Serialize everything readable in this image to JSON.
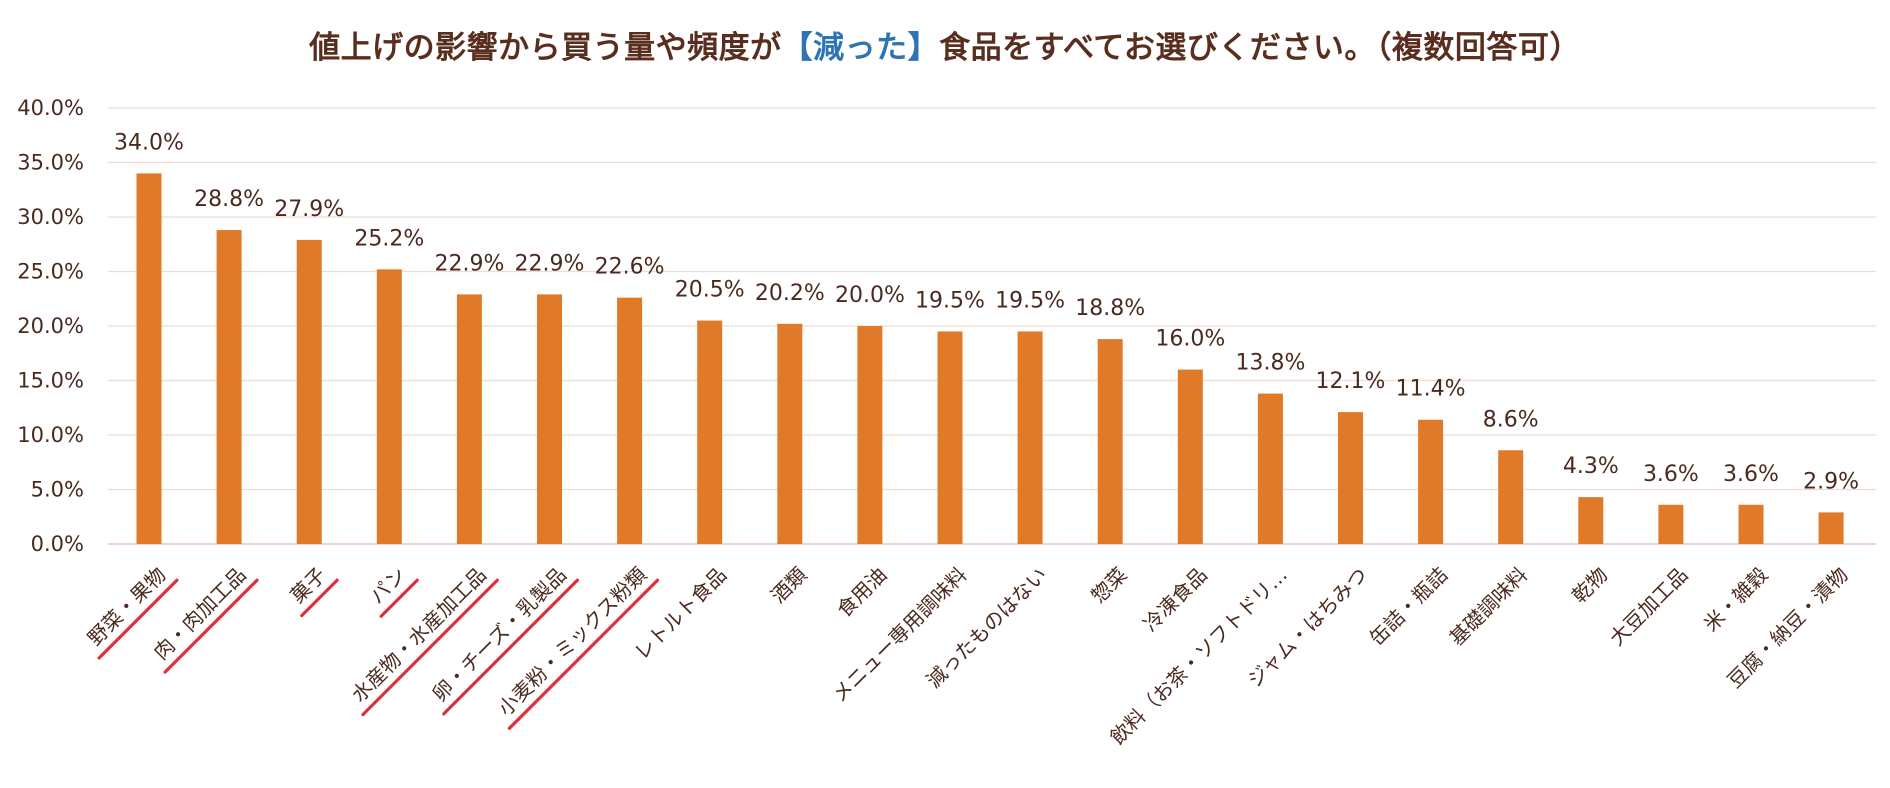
{
  "chart_data": {
    "type": "bar",
    "title": {
      "before": "値上げの影響から買う量や頻度が",
      "highlight": "【減った】",
      "after": "食品をすべてお選びください。（複数回答可）"
    },
    "xlabel": "",
    "ylabel": "",
    "ylim": [
      0,
      40
    ],
    "ytick_step": 5,
    "yticks": [
      "0.0%",
      "5.0%",
      "10.0%",
      "15.0%",
      "20.0%",
      "25.0%",
      "30.0%",
      "35.0%",
      "40.0%"
    ],
    "grid": true,
    "legend": "none",
    "categories": [
      "野菜・果物",
      "肉・肉加工品",
      "菓子",
      "パン",
      "水産物・水産加工品",
      "卵・チーズ・乳製品",
      "小麦粉・ミックス粉類",
      "レトルト食品",
      "酒類",
      "食用油",
      "メニュー専用調味料",
      "減ったものはない",
      "惣菜",
      "冷凍食品",
      "飲料（お茶・ソフトドリ…",
      "ジャム・はちみつ",
      "缶詰・瓶詰",
      "基礎調味料",
      "乾物",
      "大豆加工品",
      "米・雑穀",
      "豆腐・納豆・漬物"
    ],
    "values": [
      34.0,
      28.8,
      27.9,
      25.2,
      22.9,
      22.9,
      22.6,
      20.5,
      20.2,
      20.0,
      19.5,
      19.5,
      18.8,
      16.0,
      13.8,
      12.1,
      11.4,
      8.6,
      4.3,
      3.6,
      3.6,
      2.9
    ],
    "value_labels": [
      "34.0%",
      "28.8%",
      "27.9%",
      "25.2%",
      "22.9%",
      "22.9%",
      "22.6%",
      "20.5%",
      "20.2%",
      "20.0%",
      "19.5%",
      "19.5%",
      "18.8%",
      "16.0%",
      "13.8%",
      "12.1%",
      "11.4%",
      "8.6%",
      "4.3%",
      "3.6%",
      "3.6%",
      "2.9%"
    ],
    "underlined_categories": [
      "野菜・果物",
      "肉・肉加工品",
      "菓子",
      "パン",
      "水産物・水産加工品",
      "卵・チーズ・乳製品",
      "小麦粉・ミックス粉類"
    ]
  },
  "colors": {
    "bar": "#e07a28",
    "title": "#5a2e1e",
    "title_highlight": "#2e74b5",
    "text": "#4a2a1e",
    "grid": "#f0dcd4",
    "axis": "#e8c8bc",
    "underline": "#e0303a"
  }
}
